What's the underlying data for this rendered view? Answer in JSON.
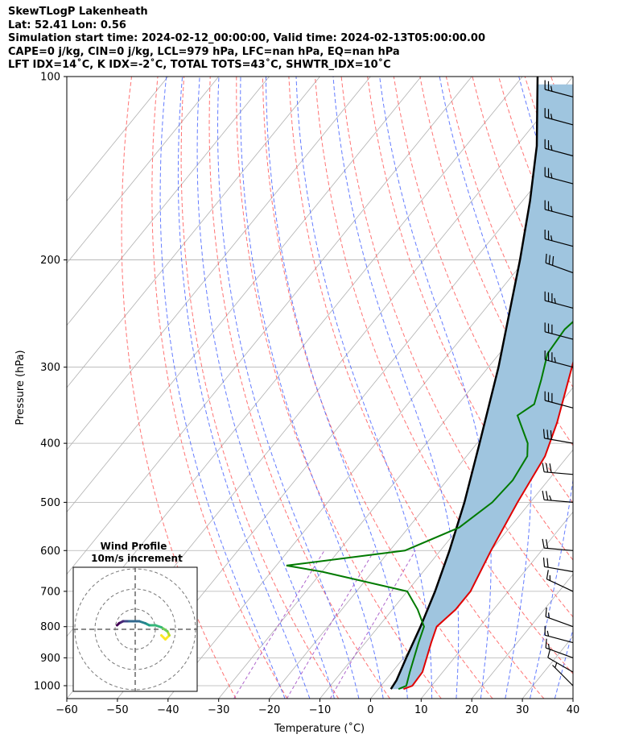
{
  "header": {
    "line1": "SkewTLogP Lakenheath",
    "line2": "Lat: 52.41   Lon: 0.56",
    "line3": "Simulation start time: 2024-02-12_00:00:00, Valid time: 2024-02-13T05:00:00.00",
    "line4": "CAPE=0 j/kg, CIN=0 j/kg, LCL=979 hPa, LFC=nan hPa, EQ=nan hPa",
    "line5": "LFT IDX=14˚C, K IDX=-2˚C, TOTAL TOTS=43˚C, SHWTR_IDX=10˚C"
  },
  "inset": {
    "title": "Wind Profile",
    "subtitle": "10m/s increment"
  },
  "chart_data": {
    "type": "line",
    "xlabel": "Temperature (˚C)",
    "ylabel": "Pressure (hPa)",
    "xlim": [
      -60,
      40
    ],
    "ylim": [
      1050,
      100
    ],
    "y_scale": "log",
    "x_ticks": [
      -60,
      -50,
      -40,
      -30,
      -20,
      -10,
      0,
      10,
      20,
      30,
      40
    ],
    "y_ticks": [
      1000,
      900,
      800,
      700,
      600,
      500,
      400,
      300,
      200,
      100
    ],
    "grid": true,
    "legend": "none",
    "colors": {
      "temperature": "#e00000",
      "dewpoint": "#007a00",
      "parcel": "#000000",
      "shade": "#9fc5df",
      "dry_adiabat": "#ff5050",
      "moist_adiabat": "#3d5bff",
      "mixing_ratio": "#9a3fbf"
    },
    "series": [
      {
        "key": "temperature",
        "points": [
          [
            5.0,
            1013
          ],
          [
            6.2,
            1000
          ],
          [
            6.0,
            950
          ],
          [
            3.0,
            850
          ],
          [
            1.5,
            800
          ],
          [
            2.5,
            750
          ],
          [
            2.5,
            700
          ],
          [
            0.0,
            600
          ],
          [
            -2.5,
            500
          ],
          [
            -4.5,
            420
          ],
          [
            -7.5,
            370
          ],
          [
            -16.5,
            270
          ],
          [
            -18.5,
            250
          ],
          [
            -19.0,
            235
          ],
          [
            -17.5,
            225
          ],
          [
            -10.0,
            180
          ],
          [
            -3.5,
            150
          ],
          [
            5.0,
            120
          ],
          [
            6.0,
            110
          ],
          [
            6.5,
            100
          ]
        ]
      },
      {
        "key": "dewpoint",
        "points": [
          [
            4.0,
            1013
          ],
          [
            5.0,
            1000
          ],
          [
            3.5,
            950
          ],
          [
            0.5,
            850
          ],
          [
            -1.0,
            800
          ],
          [
            -5.0,
            750
          ],
          [
            -10.0,
            700
          ],
          [
            -30.0,
            650
          ],
          [
            -38.0,
            635
          ],
          [
            -17.0,
            600
          ],
          [
            -10.0,
            550
          ],
          [
            -7.5,
            500
          ],
          [
            -7.0,
            460
          ],
          [
            -8.0,
            420
          ],
          [
            -10.0,
            400
          ],
          [
            -16.5,
            360
          ],
          [
            -15.0,
            345
          ],
          [
            -17.5,
            315
          ],
          [
            -20.5,
            285
          ],
          [
            -21.0,
            260
          ],
          [
            -18.5,
            220
          ],
          [
            -17.0,
            200
          ],
          [
            -19.5,
            190
          ],
          [
            -24.0,
            175
          ],
          [
            -25.0,
            168
          ],
          [
            -19.0,
            140
          ],
          [
            -10.0,
            100
          ]
        ]
      },
      {
        "key": "parcel",
        "points": [
          [
            2.5,
            1013
          ],
          [
            2.2,
            980
          ],
          [
            0.5,
            900
          ],
          [
            -1.7,
            800
          ],
          [
            -4.5,
            700
          ],
          [
            -8.2,
            600
          ],
          [
            -13.0,
            500
          ],
          [
            -19.5,
            400
          ],
          [
            -28.0,
            300
          ],
          [
            -41.0,
            200
          ],
          [
            -48.5,
            160
          ],
          [
            -56.0,
            130
          ],
          [
            -63.0,
            110
          ],
          [
            -67.0,
            100
          ]
        ]
      }
    ],
    "wind_barbs": [
      {
        "p": 1000,
        "dir": 315,
        "speed": 5
      },
      {
        "p": 950,
        "dir": 300,
        "speed": 10
      },
      {
        "p": 900,
        "dir": 290,
        "speed": 15
      },
      {
        "p": 850,
        "dir": 285,
        "speed": 15
      },
      {
        "p": 800,
        "dir": 290,
        "speed": 15
      },
      {
        "p": 700,
        "dir": 295,
        "speed": 15
      },
      {
        "p": 650,
        "dir": 280,
        "speed": 20
      },
      {
        "p": 600,
        "dir": 275,
        "speed": 20
      },
      {
        "p": 500,
        "dir": 275,
        "speed": 25
      },
      {
        "p": 450,
        "dir": 275,
        "speed": 30
      },
      {
        "p": 400,
        "dir": 280,
        "speed": 30
      },
      {
        "p": 350,
        "dir": 285,
        "speed": 30
      },
      {
        "p": 300,
        "dir": 285,
        "speed": 35
      },
      {
        "p": 270,
        "dir": 285,
        "speed": 30
      },
      {
        "p": 240,
        "dir": 285,
        "speed": 35
      },
      {
        "p": 210,
        "dir": 290,
        "speed": 30
      },
      {
        "p": 190,
        "dir": 285,
        "speed": 25
      },
      {
        "p": 170,
        "dir": 285,
        "speed": 25
      },
      {
        "p": 150,
        "dir": 285,
        "speed": 25
      },
      {
        "p": 135,
        "dir": 285,
        "speed": 25
      },
      {
        "p": 120,
        "dir": 285,
        "speed": 25
      },
      {
        "p": 108,
        "dir": 285,
        "speed": 25
      }
    ],
    "hodograph": {
      "rings_ms": [
        10,
        20,
        30
      ],
      "points_uv": [
        [
          13,
          -3
        ],
        [
          15,
          -5
        ],
        [
          17,
          -3
        ],
        [
          16,
          -1
        ],
        [
          13,
          1
        ],
        [
          10,
          2
        ],
        [
          7,
          2
        ],
        [
          5,
          3
        ],
        [
          2,
          4
        ],
        [
          -1,
          4
        ],
        [
          -4,
          4
        ],
        [
          -6,
          4
        ],
        [
          -8,
          3
        ],
        [
          -9,
          2
        ]
      ]
    }
  }
}
